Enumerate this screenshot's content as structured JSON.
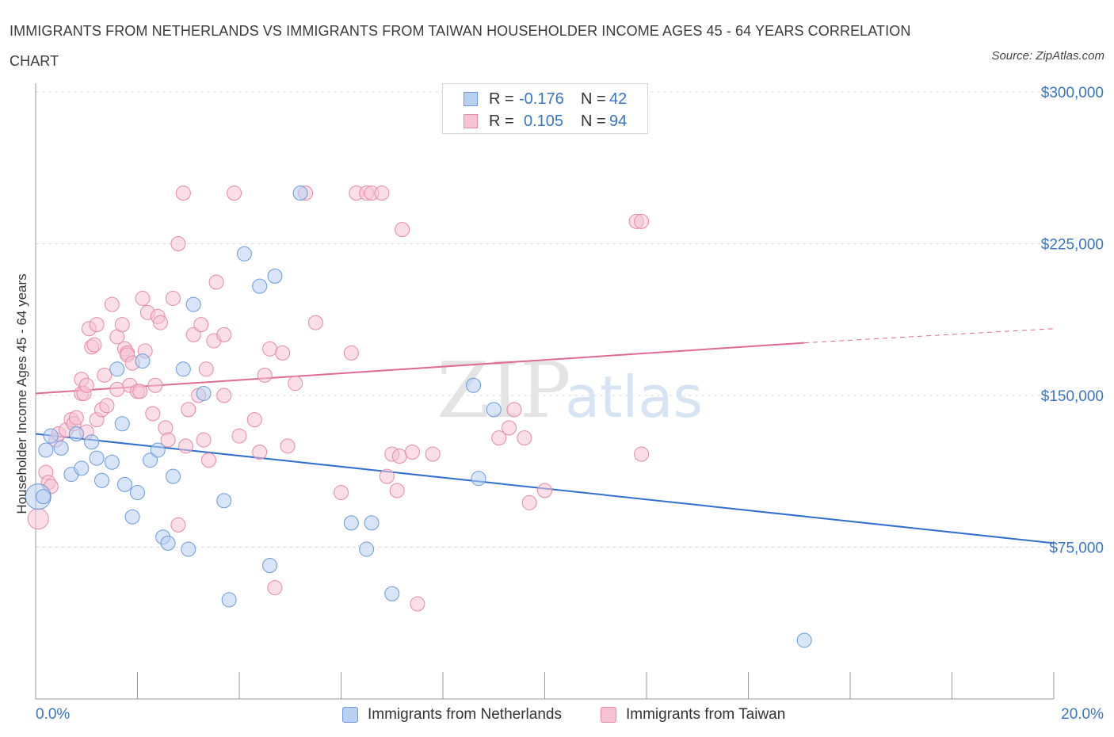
{
  "title": "IMMIGRANTS FROM NETHERLANDS VS IMMIGRANTS FROM TAIWAN HOUSEHOLDER INCOME AGES 45 - 64 YEARS CORRELATION CHART",
  "source": "Source: ZipAtlas.com",
  "watermark": "ZIPatlas",
  "legend": {
    "r_label": "R =",
    "n_label": "N =",
    "rows": [
      {
        "r": "-0.176",
        "n": "42"
      },
      {
        "r": "0.105",
        "n": "94"
      }
    ]
  },
  "colors": {
    "netherlands_fill": "#b8d0f2",
    "netherlands_stroke": "#6a9bd8",
    "netherlands_line": "#2e6fd0",
    "taiwan_fill": "#f7c3d3",
    "taiwan_stroke": "#e58aa8",
    "taiwan_line": "#e06a93",
    "axis_label": "#3a75c4",
    "grid": "#dddddd"
  },
  "chart_data": {
    "type": "scatter",
    "title": "IMMIGRANTS FROM NETHERLANDS VS IMMIGRANTS FROM TAIWAN HOUSEHOLDER INCOME AGES 45 - 64 YEARS CORRELATION CHART",
    "xlabel": "",
    "ylabel": "Householder Income Ages 45 - 64 years",
    "xlim": [
      0,
      20
    ],
    "ylim": [
      0,
      300000
    ],
    "x_tick_labels": [
      "0.0%",
      "20.0%"
    ],
    "y_ticks": [
      75000,
      150000,
      225000,
      300000
    ],
    "y_tick_labels": [
      "$75,000",
      "$150,000",
      "$225,000",
      "$300,000"
    ],
    "grid": true,
    "legend_position": "top-center",
    "series": [
      {
        "name": "Immigrants from Netherlands",
        "R": -0.176,
        "N": 42,
        "trend": {
          "x": [
            0,
            20
          ],
          "y": [
            131000,
            77000
          ]
        },
        "points": [
          [
            0.05,
            100000
          ],
          [
            0.2,
            123000
          ],
          [
            0.3,
            130000
          ],
          [
            0.5,
            124000
          ],
          [
            0.7,
            111000
          ],
          [
            0.9,
            114000
          ],
          [
            1.1,
            127000
          ],
          [
            1.2,
            119000
          ],
          [
            1.3,
            108000
          ],
          [
            1.5,
            117000
          ],
          [
            1.6,
            163000
          ],
          [
            1.7,
            136000
          ],
          [
            1.75,
            106000
          ],
          [
            1.9,
            90000
          ],
          [
            2.0,
            102000
          ],
          [
            2.1,
            167000
          ],
          [
            2.25,
            118000
          ],
          [
            2.4,
            123000
          ],
          [
            2.5,
            80000
          ],
          [
            2.6,
            77000
          ],
          [
            2.7,
            110000
          ],
          [
            2.9,
            163000
          ],
          [
            3.0,
            74000
          ],
          [
            3.1,
            195000
          ],
          [
            3.3,
            151000
          ],
          [
            3.8,
            49000
          ],
          [
            3.7,
            98000
          ],
          [
            4.1,
            220000
          ],
          [
            4.4,
            204000
          ],
          [
            4.6,
            66000
          ],
          [
            4.7,
            209000
          ],
          [
            5.2,
            250000
          ],
          [
            6.2,
            87000
          ],
          [
            6.5,
            74000
          ],
          [
            6.6,
            87000
          ],
          [
            7.0,
            52000
          ],
          [
            8.6,
            155000
          ],
          [
            8.7,
            109000
          ],
          [
            9.0,
            143000
          ],
          [
            15.1,
            29000
          ],
          [
            0.8,
            131000
          ],
          [
            0.15,
            100000
          ]
        ]
      },
      {
        "name": "Immigrants from Taiwan",
        "R": 0.105,
        "N": 94,
        "trend": {
          "x": [
            0,
            15.1,
            20
          ],
          "y": [
            151000,
            176000,
            183000
          ]
        },
        "points": [
          [
            0.05,
            89000
          ],
          [
            0.2,
            112000
          ],
          [
            0.25,
            107000
          ],
          [
            0.3,
            105000
          ],
          [
            0.4,
            128000
          ],
          [
            0.45,
            131000
          ],
          [
            0.6,
            133000
          ],
          [
            0.7,
            138000
          ],
          [
            0.75,
            136000
          ],
          [
            0.8,
            139000
          ],
          [
            0.9,
            151000
          ],
          [
            0.95,
            151000
          ],
          [
            0.9,
            158000
          ],
          [
            1.0,
            155000
          ],
          [
            1.0,
            132000
          ],
          [
            1.05,
            183000
          ],
          [
            1.1,
            174000
          ],
          [
            1.15,
            175000
          ],
          [
            1.2,
            185000
          ],
          [
            1.2,
            138000
          ],
          [
            1.3,
            143000
          ],
          [
            1.35,
            160000
          ],
          [
            1.4,
            145000
          ],
          [
            1.5,
            195000
          ],
          [
            1.6,
            153000
          ],
          [
            1.6,
            179000
          ],
          [
            1.7,
            185000
          ],
          [
            1.75,
            173000
          ],
          [
            1.8,
            171000
          ],
          [
            1.8,
            170000
          ],
          [
            1.85,
            155000
          ],
          [
            1.9,
            166000
          ],
          [
            2.0,
            152000
          ],
          [
            2.05,
            152000
          ],
          [
            2.1,
            198000
          ],
          [
            2.15,
            172000
          ],
          [
            2.2,
            191000
          ],
          [
            2.3,
            141000
          ],
          [
            2.35,
            155000
          ],
          [
            2.4,
            189000
          ],
          [
            2.45,
            186000
          ],
          [
            2.55,
            134000
          ],
          [
            2.6,
            128000
          ],
          [
            2.7,
            198000
          ],
          [
            2.8,
            225000
          ],
          [
            2.8,
            86000
          ],
          [
            2.9,
            250000
          ],
          [
            2.95,
            125000
          ],
          [
            3.0,
            143000
          ],
          [
            3.1,
            180000
          ],
          [
            3.2,
            150000
          ],
          [
            3.25,
            185000
          ],
          [
            3.3,
            128000
          ],
          [
            3.35,
            163000
          ],
          [
            3.4,
            118000
          ],
          [
            3.5,
            177000
          ],
          [
            3.55,
            206000
          ],
          [
            3.7,
            180000
          ],
          [
            3.7,
            150000
          ],
          [
            3.9,
            250000
          ],
          [
            4.0,
            130000
          ],
          [
            4.3,
            138000
          ],
          [
            4.4,
            122000
          ],
          [
            4.5,
            160000
          ],
          [
            4.6,
            173000
          ],
          [
            4.7,
            55000
          ],
          [
            4.85,
            171000
          ],
          [
            4.95,
            125000
          ],
          [
            5.1,
            156000
          ],
          [
            5.3,
            250000
          ],
          [
            5.5,
            186000
          ],
          [
            6.0,
            102000
          ],
          [
            6.2,
            171000
          ],
          [
            6.3,
            250000
          ],
          [
            6.5,
            250000
          ],
          [
            6.6,
            250000
          ],
          [
            6.8,
            250000
          ],
          [
            6.9,
            110000
          ],
          [
            7.0,
            121000
          ],
          [
            7.1,
            103000
          ],
          [
            7.15,
            120000
          ],
          [
            7.2,
            232000
          ],
          [
            7.5,
            47000
          ],
          [
            7.4,
            122000
          ],
          [
            7.8,
            121000
          ],
          [
            9.1,
            129000
          ],
          [
            9.3,
            134000
          ],
          [
            9.6,
            129000
          ],
          [
            9.4,
            143000
          ],
          [
            9.7,
            97000
          ],
          [
            10.0,
            103000
          ],
          [
            11.8,
            236000
          ],
          [
            11.9,
            236000
          ],
          [
            11.9,
            121000
          ]
        ]
      }
    ]
  },
  "bottom_legend": [
    {
      "label": "Immigrants from Netherlands"
    },
    {
      "label": "Immigrants from Taiwan"
    }
  ]
}
